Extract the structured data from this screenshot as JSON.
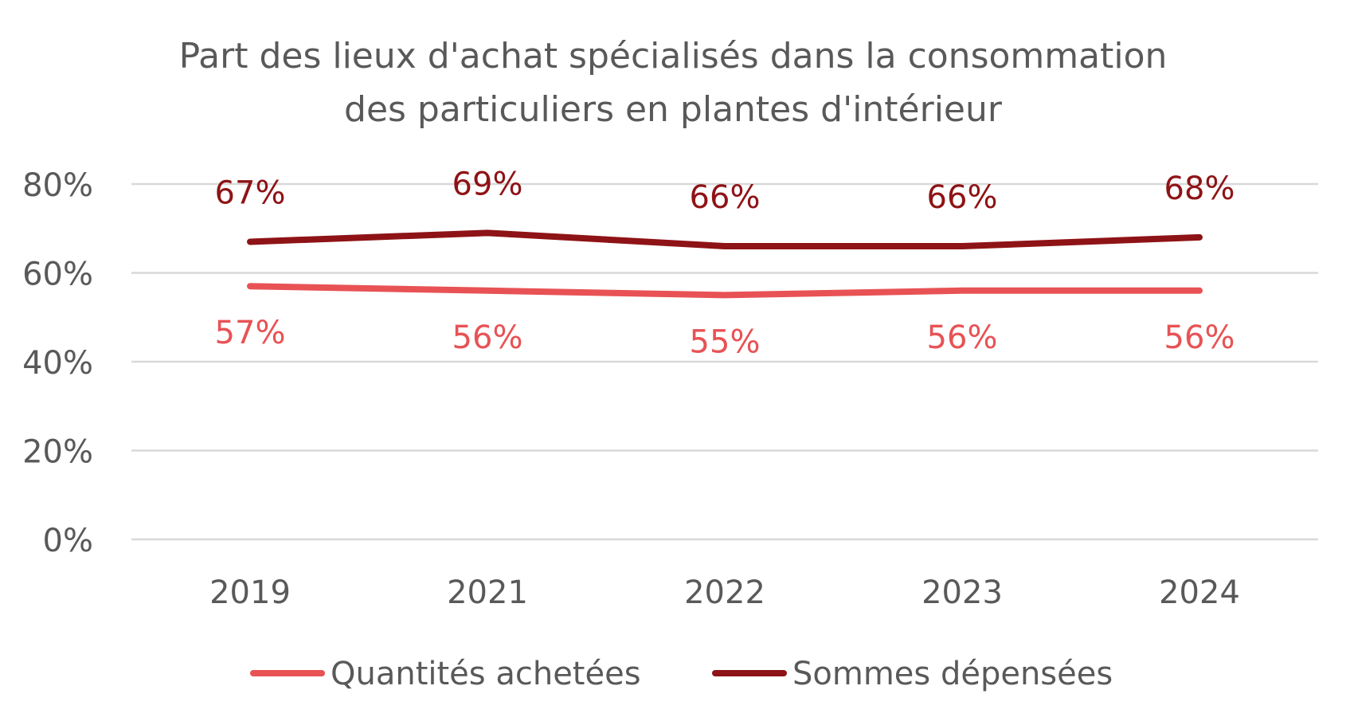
{
  "chart_data": {
    "type": "line",
    "title_lines": [
      "Part des lieux d'achat spécialisés dans la consommation",
      "des particuliers en plantes d'intérieur"
    ],
    "categories": [
      "2019",
      "2021",
      "2022",
      "2023",
      "2024"
    ],
    "series": [
      {
        "name": "Quantités achetées",
        "values": [
          57,
          56,
          55,
          56,
          56
        ],
        "labels": [
          "57%",
          "56%",
          "55%",
          "56%",
          "56%"
        ],
        "color": "#E85255",
        "label_position": "below"
      },
      {
        "name": "Sommes dépensées",
        "values": [
          67,
          69,
          66,
          66,
          68
        ],
        "labels": [
          "67%",
          "69%",
          "66%",
          "66%",
          "68%"
        ],
        "color": "#8E1316",
        "label_position": "above"
      }
    ],
    "ylim": [
      0,
      80
    ],
    "yticks": [
      0,
      20,
      40,
      60,
      80
    ],
    "ytick_labels": [
      "0%",
      "20%",
      "40%",
      "60%",
      "80%"
    ],
    "grid": true,
    "legend_position": "bottom",
    "gridline_color": "#D9D9D9",
    "text_color": "#595959"
  }
}
